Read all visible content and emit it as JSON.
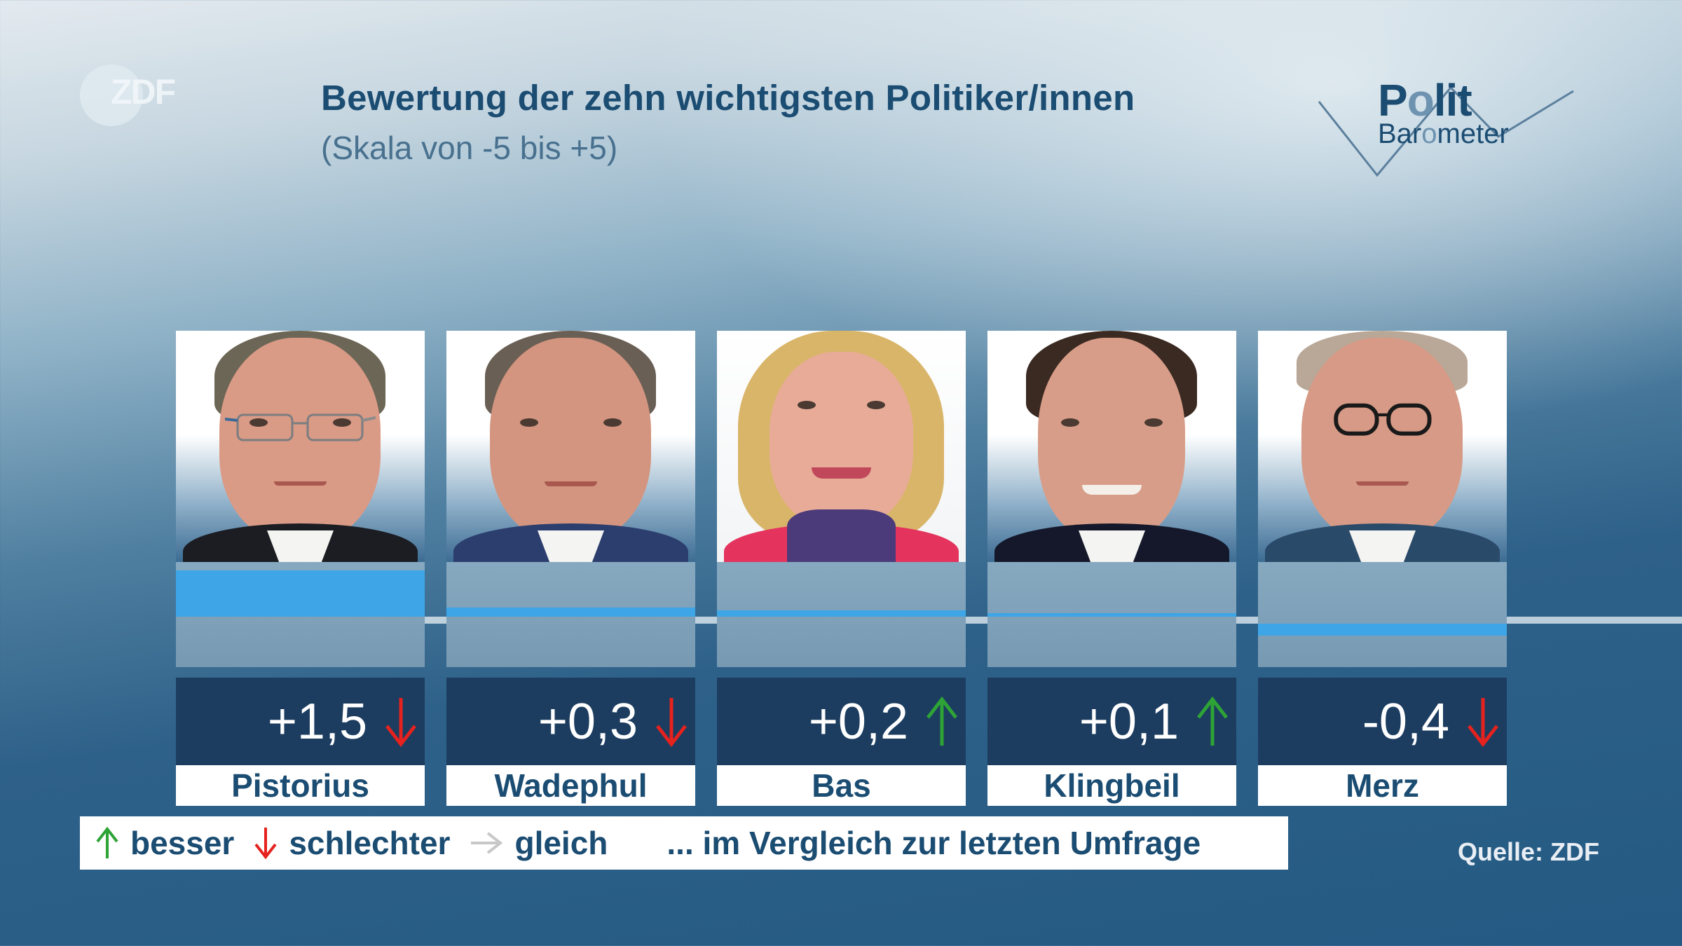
{
  "header": {
    "broadcaster_logo": "ZDF",
    "title": "Bewertung der zehn wichtigsten Politiker/innen",
    "subtitle": "(Skala von -5 bis +5)",
    "brand_logo": {
      "line1": "Polit",
      "line2": "Barometer"
    }
  },
  "colors": {
    "title": "#1b4c72",
    "bar": "#3ea5e6",
    "value_box": "#1c3d60",
    "trend_up": "#2ea336",
    "trend_down": "#e5221e",
    "trend_same": "#c8c8c8"
  },
  "politicians": [
    {
      "name": "Pistorius",
      "value_label": "+1,5",
      "value": 1.5,
      "trend": "down",
      "trend_icon": "arrow-down-icon"
    },
    {
      "name": "Wadephul",
      "value_label": "+0,3",
      "value": 0.3,
      "trend": "down",
      "trend_icon": "arrow-down-icon"
    },
    {
      "name": "Bas",
      "value_label": "+0,2",
      "value": 0.2,
      "trend": "up",
      "trend_icon": "arrow-up-icon"
    },
    {
      "name": "Klingbeil",
      "value_label": "+0,1",
      "value": 0.1,
      "trend": "up",
      "trend_icon": "arrow-up-icon"
    },
    {
      "name": "Merz",
      "value_label": "-0,4",
      "value": -0.4,
      "trend": "down",
      "trend_icon": "arrow-down-icon"
    }
  ],
  "legend": {
    "items": [
      {
        "icon": "arrow-up-icon",
        "label": "besser"
      },
      {
        "icon": "arrow-down-icon",
        "label": "schlechter"
      },
      {
        "icon": "arrow-right-icon",
        "label": "gleich"
      }
    ],
    "note": "... im Vergleich zur letzten Umfrage"
  },
  "source": "Quelle: ZDF",
  "chart_data": {
    "type": "bar",
    "title": "Bewertung der zehn wichtigsten Politiker/innen",
    "subtitle": "(Skala von -5 bis +5)",
    "categories": [
      "Pistorius",
      "Wadephul",
      "Bas",
      "Klingbeil",
      "Merz"
    ],
    "values": [
      1.5,
      0.3,
      0.2,
      0.1,
      -0.4
    ],
    "value_labels": [
      "+1,5",
      "+0,3",
      "+0,2",
      "+0,1",
      "-0,4"
    ],
    "trend_vs_last_survey": [
      "down",
      "down",
      "up",
      "up",
      "down"
    ],
    "xlabel": "",
    "ylabel": "",
    "ylim": [
      -5,
      5
    ],
    "legend": [
      "besser",
      "schlechter",
      "gleich"
    ],
    "legend_note": "... im Vergleich zur letzten Umfrage",
    "source": "Quelle: ZDF",
    "grid": false
  }
}
